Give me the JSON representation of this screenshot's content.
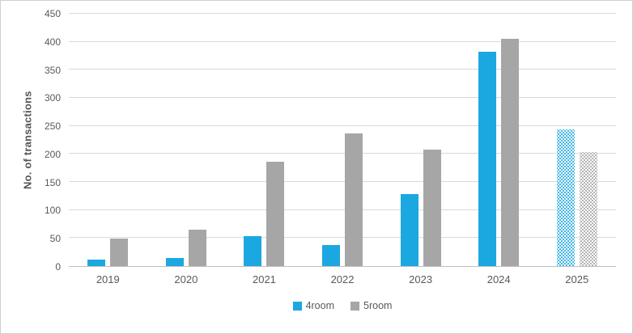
{
  "chart_data": {
    "type": "bar",
    "title": "",
    "xlabel": "",
    "ylabel": "No. of transactions",
    "categories": [
      "2019",
      "2020",
      "2021",
      "2022",
      "2023",
      "2024",
      "2025"
    ],
    "series": [
      {
        "name": "4room",
        "color": "#1ba8e1",
        "values": [
          11,
          14,
          53,
          38,
          128,
          382,
          244
        ]
      },
      {
        "name": "5room",
        "color": "#a6a6a6",
        "values": [
          49,
          65,
          186,
          236,
          208,
          405,
          203
        ]
      }
    ],
    "ylim": [
      0,
      450
    ],
    "ytick_step": 50,
    "ytick_labels": [
      "0",
      "50",
      "100",
      "150",
      "200",
      "250",
      "300",
      "350",
      "400",
      "450"
    ],
    "pattern_fill_categories": [
      "2025"
    ],
    "grid": "horizontal",
    "legend_position": "bottom",
    "colors": {
      "gridline": "#d9d9d9",
      "axis_line": "#bfbfbf",
      "tick_text": "#595959",
      "axis_title_text": "#555555",
      "frame_border": "#d0cece",
      "background": "#ffffff"
    }
  }
}
